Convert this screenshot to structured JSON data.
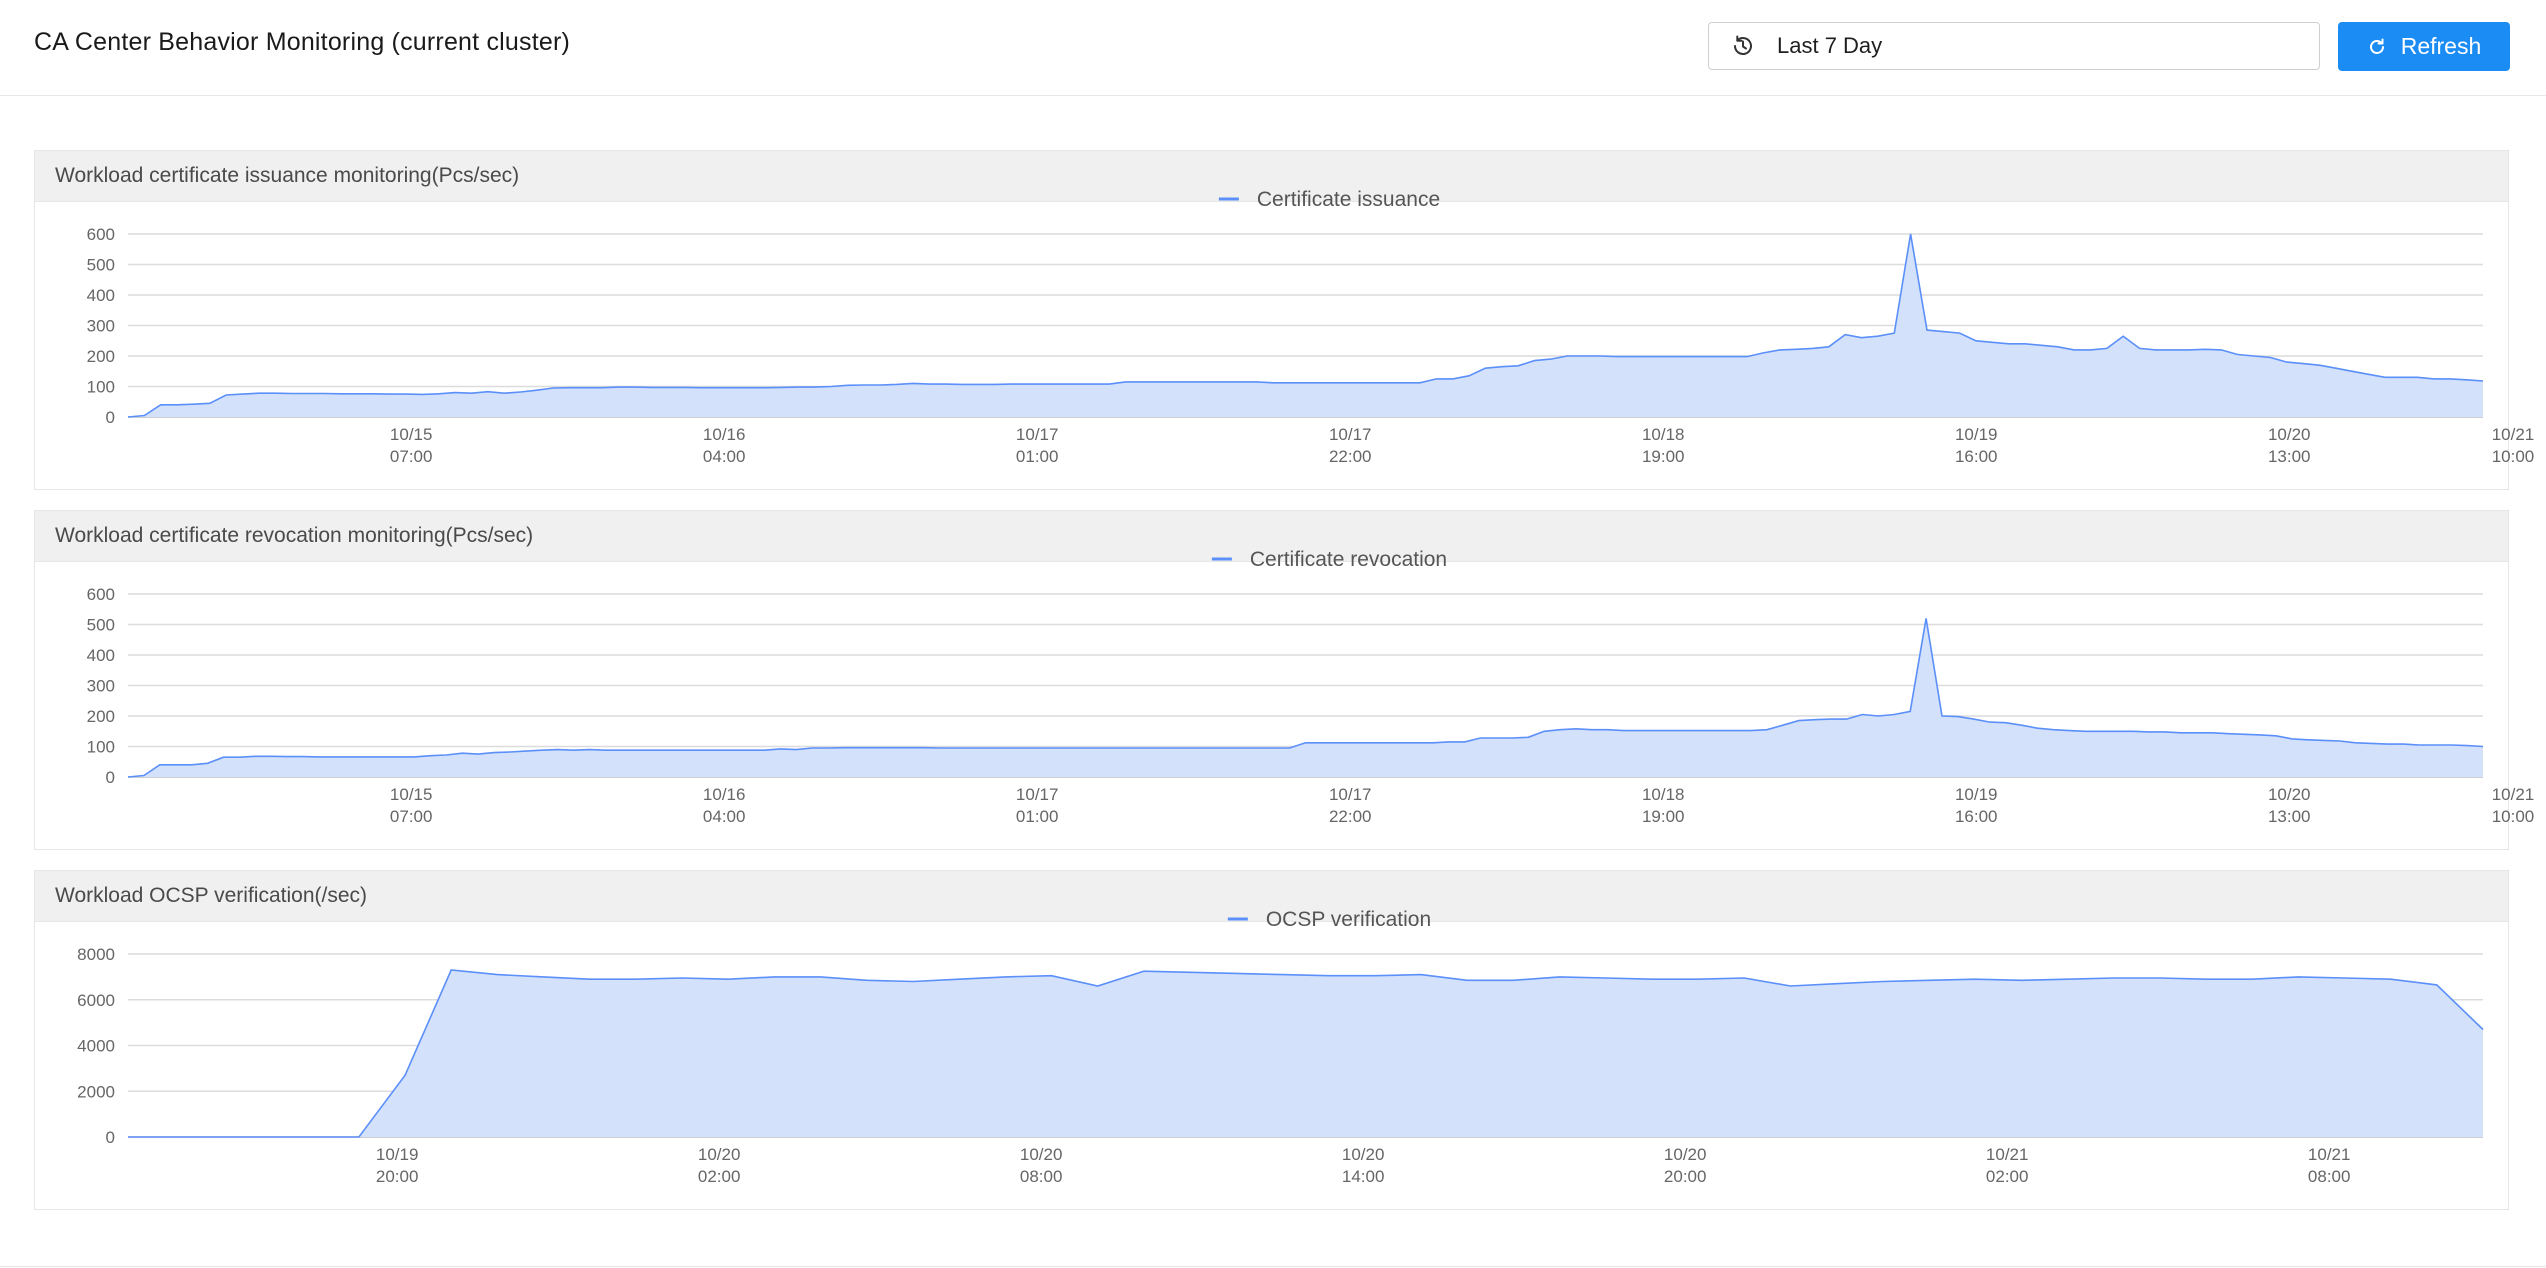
{
  "header": {
    "title": "CA Center Behavior Monitoring (current cluster)",
    "time_range": "Last 7 Day",
    "time_range_icon": "history-clock-icon",
    "refresh_label": "Refresh",
    "refresh_icon": "reload-icon"
  },
  "colors": {
    "accent": "#1c8cf5",
    "series_line": "#5b8ff9",
    "series_fill": "#d3e1fb"
  },
  "panels": [
    {
      "title": "Workload certificate issuance monitoring(Pcs/sec)",
      "legend": "Certificate issuance"
    },
    {
      "title": "Workload certificate revocation monitoring(Pcs/sec)",
      "legend": "Certificate revocation"
    },
    {
      "title": "Workload OCSP verification(/sec)",
      "legend": "OCSP verification"
    }
  ],
  "chart_data": [
    {
      "type": "area",
      "title": "Workload certificate issuance monitoring(Pcs/sec)",
      "ylim": [
        0,
        600
      ],
      "yticks": [
        0,
        100,
        200,
        300,
        400,
        500,
        600
      ],
      "grid": true,
      "legend_position": "top-center",
      "xlim": [
        0,
        158
      ],
      "xticks": [
        {
          "x": 19,
          "label": [
            "10/15",
            "07:00"
          ]
        },
        {
          "x": 40,
          "label": [
            "10/16",
            "04:00"
          ]
        },
        {
          "x": 61,
          "label": [
            "10/17",
            "01:00"
          ]
        },
        {
          "x": 82,
          "label": [
            "10/17",
            "22:00"
          ]
        },
        {
          "x": 103,
          "label": [
            "10/18",
            "19:00"
          ]
        },
        {
          "x": 124,
          "label": [
            "10/19",
            "16:00"
          ]
        },
        {
          "x": 145,
          "label": [
            "10/20",
            "13:00"
          ]
        },
        {
          "x": 166,
          "label": [
            "10/21",
            "10:00"
          ]
        }
      ],
      "series": [
        {
          "name": "Certificate issuance",
          "values": [
            0,
            5,
            40,
            40,
            42,
            45,
            72,
            75,
            78,
            78,
            77,
            77,
            77,
            76,
            76,
            76,
            75,
            75,
            74,
            76,
            80,
            78,
            83,
            78,
            82,
            88,
            95,
            96,
            96,
            96,
            98,
            98,
            97,
            97,
            97,
            96,
            96,
            96,
            96,
            96,
            97,
            98,
            98,
            100,
            104,
            105,
            105,
            107,
            110,
            108,
            108,
            107,
            107,
            107,
            108,
            108,
            108,
            108,
            108,
            108,
            108,
            115,
            115,
            115,
            115,
            115,
            115,
            115,
            115,
            115,
            112,
            112,
            112,
            112,
            112,
            112,
            112,
            112,
            112,
            112,
            125,
            125,
            135,
            160,
            165,
            168,
            185,
            190,
            200,
            200,
            200,
            198,
            198,
            198,
            198,
            198,
            198,
            198,
            198,
            198,
            210,
            220,
            222,
            225,
            230,
            270,
            260,
            265,
            275,
            600,
            285,
            280,
            275,
            250,
            245,
            240,
            240,
            235,
            230,
            220,
            220,
            225,
            265,
            225,
            220,
            220,
            220,
            222,
            220,
            205,
            200,
            195,
            180,
            175,
            170,
            160,
            150,
            140,
            130,
            130,
            130,
            125,
            125,
            122,
            118
          ]
        }
      ]
    },
    {
      "type": "area",
      "title": "Workload certificate revocation monitoring(Pcs/sec)",
      "ylim": [
        0,
        600
      ],
      "yticks": [
        0,
        100,
        200,
        300,
        400,
        500,
        600
      ],
      "grid": true,
      "legend_position": "top-center",
      "xlim": [
        0,
        158
      ],
      "xticks": [
        {
          "x": 19,
          "label": [
            "10/15",
            "07:00"
          ]
        },
        {
          "x": 40,
          "label": [
            "10/16",
            "04:00"
          ]
        },
        {
          "x": 61,
          "label": [
            "10/17",
            "01:00"
          ]
        },
        {
          "x": 82,
          "label": [
            "10/17",
            "22:00"
          ]
        },
        {
          "x": 103,
          "label": [
            "10/18",
            "19:00"
          ]
        },
        {
          "x": 124,
          "label": [
            "10/19",
            "16:00"
          ]
        },
        {
          "x": 145,
          "label": [
            "10/20",
            "13:00"
          ]
        },
        {
          "x": 166,
          "label": [
            "10/21",
            "10:00"
          ]
        }
      ],
      "series": [
        {
          "name": "Certificate revocation",
          "values": [
            0,
            5,
            40,
            40,
            40,
            45,
            65,
            65,
            68,
            68,
            67,
            67,
            66,
            66,
            66,
            66,
            66,
            66,
            66,
            70,
            72,
            78,
            75,
            80,
            82,
            85,
            88,
            90,
            88,
            90,
            88,
            88,
            88,
            88,
            88,
            88,
            88,
            88,
            88,
            88,
            88,
            92,
            90,
            95,
            95,
            96,
            96,
            96,
            96,
            96,
            96,
            95,
            95,
            95,
            95,
            95,
            95,
            95,
            95,
            95,
            95,
            95,
            95,
            95,
            95,
            95,
            95,
            95,
            95,
            95,
            95,
            95,
            95,
            95,
            112,
            112,
            112,
            112,
            112,
            112,
            112,
            112,
            112,
            115,
            115,
            128,
            128,
            128,
            130,
            150,
            155,
            158,
            155,
            155,
            152,
            152,
            152,
            152,
            152,
            152,
            152,
            152,
            152,
            155,
            170,
            185,
            188,
            190,
            190,
            205,
            200,
            205,
            215,
            520,
            200,
            198,
            190,
            180,
            178,
            170,
            160,
            155,
            152,
            150,
            150,
            150,
            150,
            148,
            148,
            145,
            145,
            145,
            142,
            140,
            138,
            135,
            125,
            122,
            120,
            118,
            112,
            110,
            108,
            108,
            105,
            105,
            105,
            103,
            100
          ]
        }
      ]
    },
    {
      "type": "area",
      "title": "Workload OCSP verification(/sec)",
      "ylim": [
        0,
        8000
      ],
      "yticks": [
        0,
        2000,
        4000,
        6000,
        8000
      ],
      "grid": true,
      "legend_position": "top-center",
      "xlim": [
        0,
        49
      ],
      "xticks": [
        {
          "x": 5.6,
          "label": [
            "10/19",
            "20:00"
          ]
        },
        {
          "x": 12.3,
          "label": [
            "10/20",
            "02:00"
          ]
        },
        {
          "x": 19.0,
          "label": [
            "10/20",
            "08:00"
          ]
        },
        {
          "x": 25.7,
          "label": [
            "10/20",
            "14:00"
          ]
        },
        {
          "x": 32.4,
          "label": [
            "10/20",
            "20:00"
          ]
        },
        {
          "x": 39.1,
          "label": [
            "10/21",
            "02:00"
          ]
        },
        {
          "x": 45.8,
          "label": [
            "10/21",
            "08:00"
          ]
        }
      ],
      "series": [
        {
          "name": "OCSP verification",
          "values": [
            0,
            0,
            0,
            0,
            0,
            0,
            2700,
            7300,
            7100,
            7000,
            6900,
            6900,
            6950,
            6900,
            7000,
            7000,
            6850,
            6800,
            6900,
            7000,
            7050,
            6600,
            7250,
            7200,
            7150,
            7100,
            7050,
            7050,
            7100,
            6850,
            6850,
            7000,
            6950,
            6900,
            6900,
            6950,
            6600,
            6700,
            6800,
            6850,
            6900,
            6850,
            6900,
            6950,
            6950,
            6900,
            6900,
            7000,
            6950,
            6900,
            6650,
            4700
          ]
        }
      ]
    }
  ]
}
